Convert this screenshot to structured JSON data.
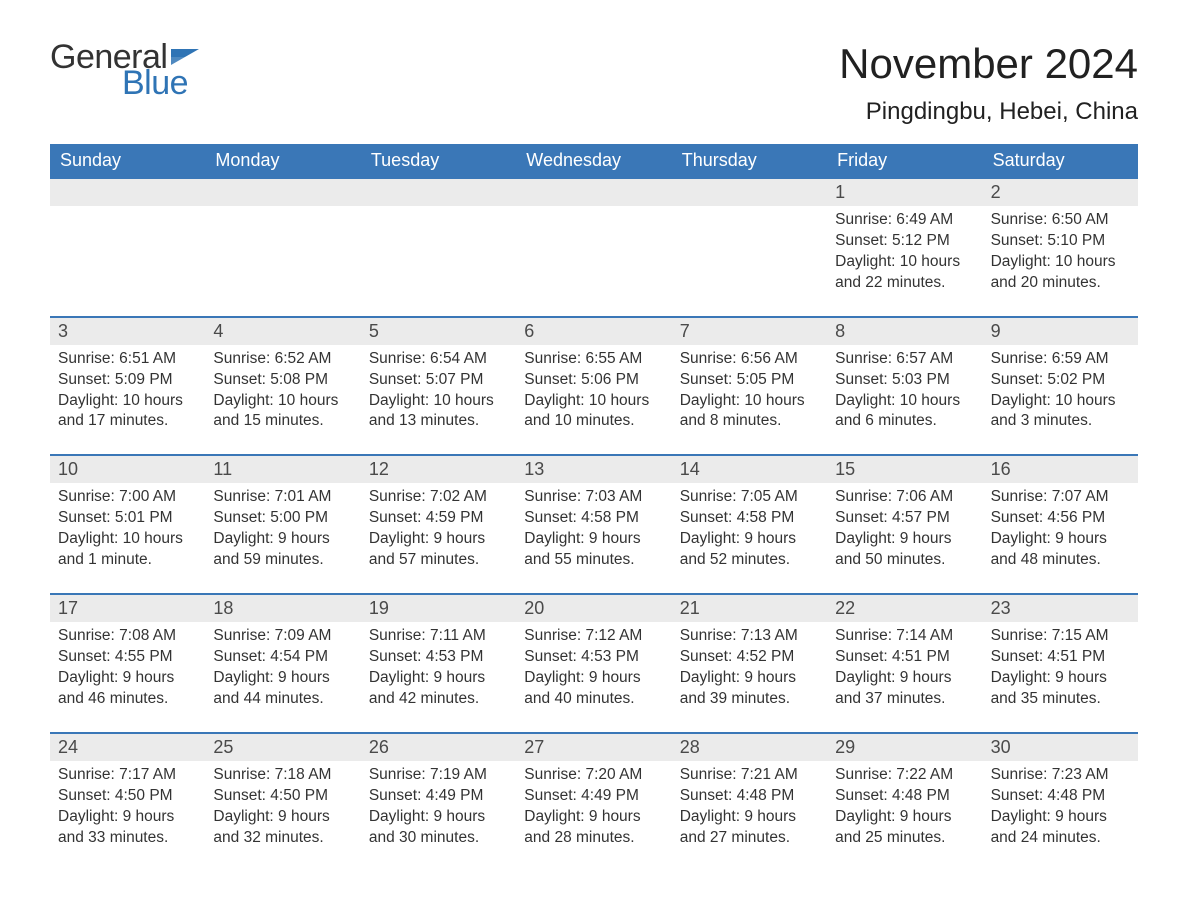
{
  "logo": {
    "text1": "General",
    "text2": "Blue",
    "flag_color": "#2f74b5"
  },
  "header": {
    "month_title": "November 2024",
    "location": "Pingdingbu, Hebei, China"
  },
  "colors": {
    "header_bg": "#3a77b7",
    "header_text": "#ffffff",
    "daynum_bg": "#ebebeb",
    "border": "#3a77b7",
    "body_text": "#333333",
    "logo_blue": "#2f74b5"
  },
  "weekdays": [
    "Sunday",
    "Monday",
    "Tuesday",
    "Wednesday",
    "Thursday",
    "Friday",
    "Saturday"
  ],
  "weeks": [
    [
      {
        "empty": true
      },
      {
        "empty": true
      },
      {
        "empty": true
      },
      {
        "empty": true
      },
      {
        "empty": true
      },
      {
        "num": "1",
        "sunrise": "Sunrise: 6:49 AM",
        "sunset": "Sunset: 5:12 PM",
        "daylight": "Daylight: 10 hours and 22 minutes."
      },
      {
        "num": "2",
        "sunrise": "Sunrise: 6:50 AM",
        "sunset": "Sunset: 5:10 PM",
        "daylight": "Daylight: 10 hours and 20 minutes."
      }
    ],
    [
      {
        "num": "3",
        "sunrise": "Sunrise: 6:51 AM",
        "sunset": "Sunset: 5:09 PM",
        "daylight": "Daylight: 10 hours and 17 minutes."
      },
      {
        "num": "4",
        "sunrise": "Sunrise: 6:52 AM",
        "sunset": "Sunset: 5:08 PM",
        "daylight": "Daylight: 10 hours and 15 minutes."
      },
      {
        "num": "5",
        "sunrise": "Sunrise: 6:54 AM",
        "sunset": "Sunset: 5:07 PM",
        "daylight": "Daylight: 10 hours and 13 minutes."
      },
      {
        "num": "6",
        "sunrise": "Sunrise: 6:55 AM",
        "sunset": "Sunset: 5:06 PM",
        "daylight": "Daylight: 10 hours and 10 minutes."
      },
      {
        "num": "7",
        "sunrise": "Sunrise: 6:56 AM",
        "sunset": "Sunset: 5:05 PM",
        "daylight": "Daylight: 10 hours and 8 minutes."
      },
      {
        "num": "8",
        "sunrise": "Sunrise: 6:57 AM",
        "sunset": "Sunset: 5:03 PM",
        "daylight": "Daylight: 10 hours and 6 minutes."
      },
      {
        "num": "9",
        "sunrise": "Sunrise: 6:59 AM",
        "sunset": "Sunset: 5:02 PM",
        "daylight": "Daylight: 10 hours and 3 minutes."
      }
    ],
    [
      {
        "num": "10",
        "sunrise": "Sunrise: 7:00 AM",
        "sunset": "Sunset: 5:01 PM",
        "daylight": "Daylight: 10 hours and 1 minute."
      },
      {
        "num": "11",
        "sunrise": "Sunrise: 7:01 AM",
        "sunset": "Sunset: 5:00 PM",
        "daylight": "Daylight: 9 hours and 59 minutes."
      },
      {
        "num": "12",
        "sunrise": "Sunrise: 7:02 AM",
        "sunset": "Sunset: 4:59 PM",
        "daylight": "Daylight: 9 hours and 57 minutes."
      },
      {
        "num": "13",
        "sunrise": "Sunrise: 7:03 AM",
        "sunset": "Sunset: 4:58 PM",
        "daylight": "Daylight: 9 hours and 55 minutes."
      },
      {
        "num": "14",
        "sunrise": "Sunrise: 7:05 AM",
        "sunset": "Sunset: 4:58 PM",
        "daylight": "Daylight: 9 hours and 52 minutes."
      },
      {
        "num": "15",
        "sunrise": "Sunrise: 7:06 AM",
        "sunset": "Sunset: 4:57 PM",
        "daylight": "Daylight: 9 hours and 50 minutes."
      },
      {
        "num": "16",
        "sunrise": "Sunrise: 7:07 AM",
        "sunset": "Sunset: 4:56 PM",
        "daylight": "Daylight: 9 hours and 48 minutes."
      }
    ],
    [
      {
        "num": "17",
        "sunrise": "Sunrise: 7:08 AM",
        "sunset": "Sunset: 4:55 PM",
        "daylight": "Daylight: 9 hours and 46 minutes."
      },
      {
        "num": "18",
        "sunrise": "Sunrise: 7:09 AM",
        "sunset": "Sunset: 4:54 PM",
        "daylight": "Daylight: 9 hours and 44 minutes."
      },
      {
        "num": "19",
        "sunrise": "Sunrise: 7:11 AM",
        "sunset": "Sunset: 4:53 PM",
        "daylight": "Daylight: 9 hours and 42 minutes."
      },
      {
        "num": "20",
        "sunrise": "Sunrise: 7:12 AM",
        "sunset": "Sunset: 4:53 PM",
        "daylight": "Daylight: 9 hours and 40 minutes."
      },
      {
        "num": "21",
        "sunrise": "Sunrise: 7:13 AM",
        "sunset": "Sunset: 4:52 PM",
        "daylight": "Daylight: 9 hours and 39 minutes."
      },
      {
        "num": "22",
        "sunrise": "Sunrise: 7:14 AM",
        "sunset": "Sunset: 4:51 PM",
        "daylight": "Daylight: 9 hours and 37 minutes."
      },
      {
        "num": "23",
        "sunrise": "Sunrise: 7:15 AM",
        "sunset": "Sunset: 4:51 PM",
        "daylight": "Daylight: 9 hours and 35 minutes."
      }
    ],
    [
      {
        "num": "24",
        "sunrise": "Sunrise: 7:17 AM",
        "sunset": "Sunset: 4:50 PM",
        "daylight": "Daylight: 9 hours and 33 minutes."
      },
      {
        "num": "25",
        "sunrise": "Sunrise: 7:18 AM",
        "sunset": "Sunset: 4:50 PM",
        "daylight": "Daylight: 9 hours and 32 minutes."
      },
      {
        "num": "26",
        "sunrise": "Sunrise: 7:19 AM",
        "sunset": "Sunset: 4:49 PM",
        "daylight": "Daylight: 9 hours and 30 minutes."
      },
      {
        "num": "27",
        "sunrise": "Sunrise: 7:20 AM",
        "sunset": "Sunset: 4:49 PM",
        "daylight": "Daylight: 9 hours and 28 minutes."
      },
      {
        "num": "28",
        "sunrise": "Sunrise: 7:21 AM",
        "sunset": "Sunset: 4:48 PM",
        "daylight": "Daylight: 9 hours and 27 minutes."
      },
      {
        "num": "29",
        "sunrise": "Sunrise: 7:22 AM",
        "sunset": "Sunset: 4:48 PM",
        "daylight": "Daylight: 9 hours and 25 minutes."
      },
      {
        "num": "30",
        "sunrise": "Sunrise: 7:23 AM",
        "sunset": "Sunset: 4:48 PM",
        "daylight": "Daylight: 9 hours and 24 minutes."
      }
    ]
  ]
}
